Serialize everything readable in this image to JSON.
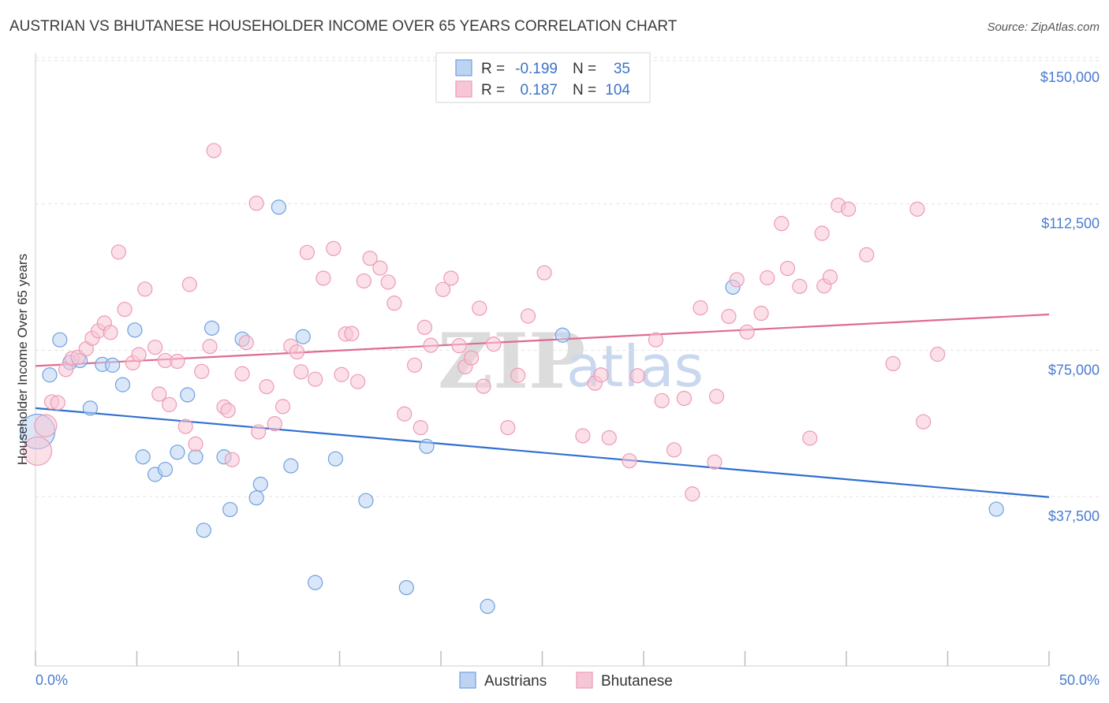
{
  "chart_data": {
    "type": "scatter",
    "title": "AUSTRIAN VS BHUTANESE HOUSEHOLDER INCOME OVER 65 YEARS CORRELATION CHART",
    "source": "Source: ZipAtlas.com",
    "ylabel": "Householder Income Over 65 years",
    "xlabel": "",
    "xlim": [
      0,
      50
    ],
    "ylim": [
      0,
      150000
    ],
    "x_tick_labels": [
      {
        "value": 0,
        "label": "0.0%"
      },
      {
        "value": 50,
        "label": "50.0%"
      }
    ],
    "y_ticks": [
      {
        "value": 150000,
        "label": "$150,000"
      },
      {
        "value": 112500,
        "label": "$112,500"
      },
      {
        "value": 75000,
        "label": "$75,000"
      },
      {
        "value": 37500,
        "label": "$37,500"
      }
    ],
    "grid": true,
    "legend_placement": "top-center",
    "legend": {
      "rows": [
        {
          "r_label": "R =",
          "r_value": "-0.199",
          "n_label": "N =",
          "n_value": "35"
        },
        {
          "r_label": "R =",
          "r_value": "0.187",
          "n_label": "N =",
          "n_value": "104"
        }
      ]
    },
    "watermark": {
      "zip": "ZIP",
      "atlas": "atlas"
    },
    "series": [
      {
        "name": "Austrians",
        "color": "#6fa0e0",
        "fill": "#bcd3f2",
        "trend": {
          "x": [
            0,
            50
          ],
          "y": [
            65000,
            42200
          ],
          "color": "#2f6fd0"
        },
        "points": [
          [
            0.1,
            59000
          ],
          [
            0.7,
            73500
          ],
          [
            1.2,
            82500
          ],
          [
            1.7,
            76700
          ],
          [
            2.2,
            77200
          ],
          [
            2.7,
            65000
          ],
          [
            3.3,
            76200
          ],
          [
            3.8,
            76000
          ],
          [
            4.3,
            71000
          ],
          [
            4.9,
            85000
          ],
          [
            5.3,
            52500
          ],
          [
            5.9,
            48000
          ],
          [
            6.4,
            49300
          ],
          [
            7.0,
            53700
          ],
          [
            7.5,
            68400
          ],
          [
            7.9,
            52500
          ],
          [
            8.3,
            33700
          ],
          [
            8.7,
            85500
          ],
          [
            9.3,
            52500
          ],
          [
            9.6,
            39000
          ],
          [
            10.2,
            82700
          ],
          [
            10.9,
            42000
          ],
          [
            11.1,
            45500
          ],
          [
            12.0,
            116500
          ],
          [
            12.6,
            50200
          ],
          [
            13.2,
            83300
          ],
          [
            13.8,
            20300
          ],
          [
            14.8,
            52000
          ],
          [
            16.3,
            41300
          ],
          [
            18.3,
            19000
          ],
          [
            19.3,
            55200
          ],
          [
            22.3,
            14200
          ],
          [
            26.0,
            83700
          ],
          [
            34.4,
            96000
          ],
          [
            47.4,
            39100
          ]
        ],
        "sizes": [
          22,
          9,
          9,
          9,
          9,
          9,
          9,
          9,
          9,
          9,
          9,
          9,
          9,
          9,
          9,
          9,
          9,
          9,
          9,
          9,
          9,
          9,
          9,
          9,
          9,
          9,
          9,
          9,
          9,
          9,
          9,
          9,
          9,
          9,
          9
        ]
      },
      {
        "name": "Bhutanese",
        "color": "#ee9ab6",
        "fill": "#f7c6d6",
        "trend": {
          "x": [
            0,
            50
          ],
          "y": [
            75800,
            89000
          ],
          "color": "#e06a92"
        },
        "points": [
          [
            0.1,
            54000
          ],
          [
            0.5,
            60500
          ],
          [
            0.8,
            66600
          ],
          [
            1.1,
            66400
          ],
          [
            1.5,
            74900
          ],
          [
            1.8,
            77700
          ],
          [
            2.1,
            78000
          ],
          [
            2.5,
            80200
          ],
          [
            2.8,
            82900
          ],
          [
            3.1,
            84800
          ],
          [
            3.4,
            86800
          ],
          [
            3.7,
            84400
          ],
          [
            4.1,
            105000
          ],
          [
            4.4,
            90300
          ],
          [
            4.8,
            76600
          ],
          [
            5.1,
            78700
          ],
          [
            5.4,
            95500
          ],
          [
            5.9,
            80600
          ],
          [
            6.1,
            68600
          ],
          [
            6.4,
            77200
          ],
          [
            6.6,
            65900
          ],
          [
            7.0,
            77000
          ],
          [
            7.4,
            60300
          ],
          [
            7.6,
            96700
          ],
          [
            7.9,
            55800
          ],
          [
            8.2,
            74400
          ],
          [
            8.6,
            80800
          ],
          [
            8.8,
            131000
          ],
          [
            9.3,
            65300
          ],
          [
            9.5,
            64400
          ],
          [
            9.7,
            51800
          ],
          [
            10.2,
            73800
          ],
          [
            10.4,
            81800
          ],
          [
            10.9,
            117500
          ],
          [
            11.0,
            58900
          ],
          [
            11.4,
            70500
          ],
          [
            11.8,
            61000
          ],
          [
            12.2,
            65400
          ],
          [
            12.6,
            80900
          ],
          [
            12.9,
            79400
          ],
          [
            13.1,
            74300
          ],
          [
            13.4,
            104900
          ],
          [
            13.8,
            72400
          ],
          [
            14.2,
            98300
          ],
          [
            14.7,
            105900
          ],
          [
            15.1,
            73600
          ],
          [
            15.3,
            84000
          ],
          [
            15.6,
            84100
          ],
          [
            15.9,
            71800
          ],
          [
            16.2,
            97600
          ],
          [
            16.5,
            103400
          ],
          [
            17.0,
            100900
          ],
          [
            17.4,
            97300
          ],
          [
            17.7,
            91900
          ],
          [
            18.2,
            63500
          ],
          [
            18.7,
            76000
          ],
          [
            19.0,
            60000
          ],
          [
            19.2,
            85700
          ],
          [
            19.5,
            81100
          ],
          [
            20.1,
            95400
          ],
          [
            20.5,
            98300
          ],
          [
            20.9,
            81000
          ],
          [
            21.2,
            75600
          ],
          [
            21.5,
            77900
          ],
          [
            21.9,
            90600
          ],
          [
            22.1,
            70600
          ],
          [
            22.6,
            81400
          ],
          [
            23.3,
            60000
          ],
          [
            23.8,
            73400
          ],
          [
            24.3,
            88600
          ],
          [
            25.1,
            99700
          ],
          [
            27.0,
            57900
          ],
          [
            27.6,
            71400
          ],
          [
            27.9,
            73500
          ],
          [
            28.3,
            57400
          ],
          [
            29.3,
            51500
          ],
          [
            29.7,
            73300
          ],
          [
            30.6,
            82500
          ],
          [
            30.9,
            66900
          ],
          [
            31.5,
            54300
          ],
          [
            32.0,
            67500
          ],
          [
            32.4,
            43000
          ],
          [
            32.8,
            90700
          ],
          [
            33.5,
            51200
          ],
          [
            34.2,
            88500
          ],
          [
            34.6,
            97900
          ],
          [
            35.1,
            84500
          ],
          [
            35.8,
            89300
          ],
          [
            36.1,
            98400
          ],
          [
            36.8,
            112300
          ],
          [
            37.1,
            100800
          ],
          [
            37.7,
            96200
          ],
          [
            38.2,
            57300
          ],
          [
            38.8,
            109800
          ],
          [
            38.9,
            96300
          ],
          [
            39.2,
            98600
          ],
          [
            39.6,
            117000
          ],
          [
            40.1,
            116000
          ],
          [
            41.0,
            104300
          ],
          [
            43.5,
            116000
          ],
          [
            43.8,
            61500
          ],
          [
            44.5,
            78800
          ],
          [
            33.6,
            68000
          ],
          [
            42.3,
            76400
          ]
        ],
        "sizes": [
          18,
          14,
          9,
          9,
          9,
          9,
          9,
          9,
          9,
          9,
          9,
          9,
          9,
          9,
          9,
          9,
          9,
          9,
          9,
          9,
          9,
          9,
          9,
          9,
          9,
          9,
          9,
          9,
          9,
          9,
          9,
          9,
          9,
          9,
          9,
          9,
          9,
          9,
          9,
          9,
          9,
          9,
          9,
          9,
          9,
          9,
          9,
          9,
          9,
          9,
          9,
          9,
          9,
          9,
          9,
          9,
          9,
          9,
          9,
          9,
          9,
          9,
          9,
          9,
          9,
          9,
          9,
          9,
          9,
          9,
          9,
          9,
          9,
          9,
          9,
          9,
          9,
          9,
          9,
          9,
          9,
          9,
          9,
          9,
          9,
          9,
          9,
          9,
          9,
          9,
          9,
          9,
          9,
          9,
          9,
          9,
          9,
          9,
          9,
          9,
          9,
          9,
          0,
          0
        ]
      }
    ]
  }
}
